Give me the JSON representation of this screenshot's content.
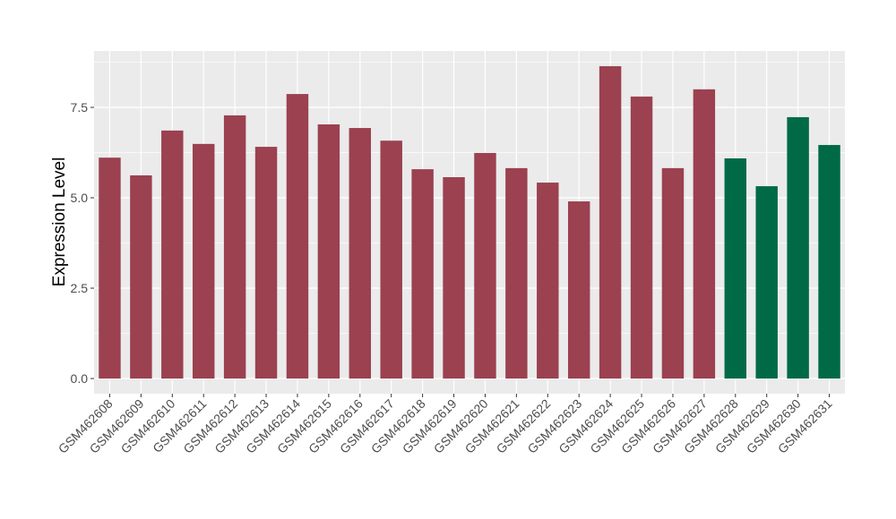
{
  "chart_data": {
    "type": "bar",
    "y_label": "Expression Level",
    "categories": [
      "GSM462608",
      "GSM462609",
      "GSM462610",
      "GSM462611",
      "GSM462612",
      "GSM462613",
      "GSM462614",
      "GSM462615",
      "GSM462616",
      "GSM462617",
      "GSM462618",
      "GSM462619",
      "GSM462620",
      "GSM462621",
      "GSM462622",
      "GSM462623",
      "GSM462624",
      "GSM462625",
      "GSM462626",
      "GSM462627",
      "GSM462628",
      "GSM462629",
      "GSM462630",
      "GSM462631"
    ],
    "values": [
      6.11,
      5.62,
      6.86,
      6.49,
      7.28,
      6.41,
      7.87,
      7.03,
      6.93,
      6.58,
      5.79,
      5.57,
      6.24,
      5.82,
      5.42,
      4.9,
      8.64,
      7.8,
      5.82,
      8.0,
      6.09,
      5.32,
      7.23,
      6.46
    ],
    "colors": [
      "#9b4150",
      "#9b4150",
      "#9b4150",
      "#9b4150",
      "#9b4150",
      "#9b4150",
      "#9b4150",
      "#9b4150",
      "#9b4150",
      "#9b4150",
      "#9b4150",
      "#9b4150",
      "#9b4150",
      "#9b4150",
      "#9b4150",
      "#9b4150",
      "#9b4150",
      "#9b4150",
      "#9b4150",
      "#9b4150",
      "#006a46",
      "#006a46",
      "#006a46",
      "#006a46"
    ],
    "ylim": [
      -0.42,
      9.06
    ],
    "yticks": [
      {
        "value": 0,
        "label": "0.0"
      },
      {
        "value": 2.5,
        "label": "2.5"
      },
      {
        "value": 5,
        "label": "5.0"
      },
      {
        "value": 7.5,
        "label": "7.5"
      }
    ],
    "grid": true
  }
}
